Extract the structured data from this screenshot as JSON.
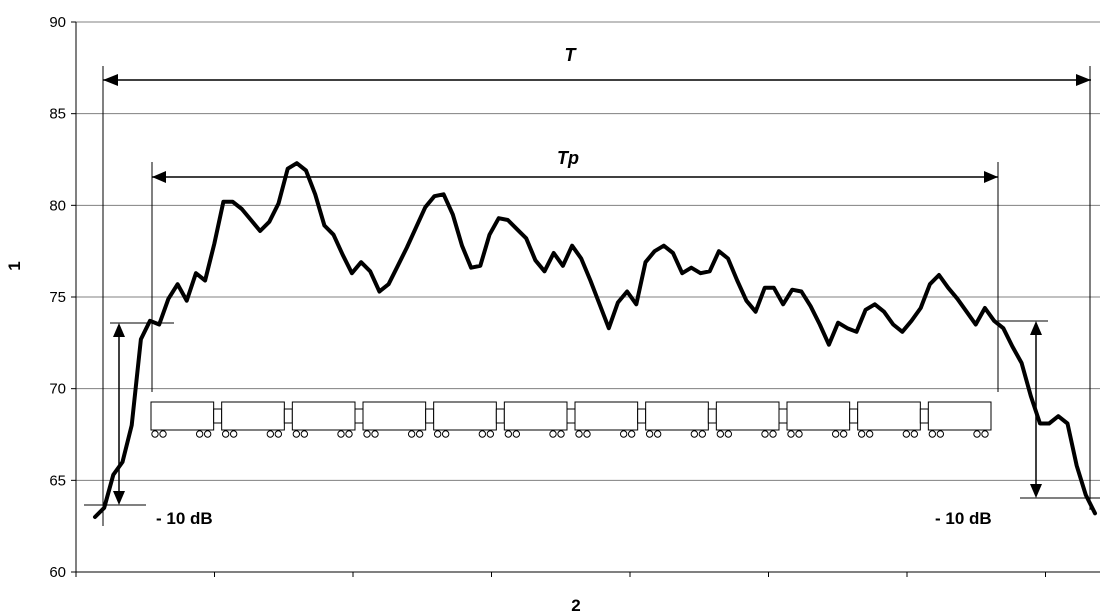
{
  "chart_data": {
    "type": "line",
    "title": "",
    "xlabel": "2",
    "ylabel": "1",
    "ylim": [
      60,
      90
    ],
    "yticks": [
      "60",
      "65",
      "70",
      "75",
      "80",
      "85",
      "90"
    ],
    "grid": "horizontal",
    "legend": "none",
    "series": [
      {
        "color": "#000000",
        "values": [
          63.0,
          63.5,
          65.3,
          66.0,
          68.0,
          72.7,
          73.7,
          73.5,
          74.9,
          75.7,
          74.8,
          76.3,
          75.9,
          77.9,
          80.2,
          80.2,
          79.8,
          79.2,
          78.6,
          79.1,
          80.1,
          82.0,
          82.3,
          81.9,
          80.6,
          78.9,
          78.4,
          77.3,
          76.3,
          76.9,
          76.4,
          75.3,
          75.7,
          76.7,
          77.7,
          78.8,
          79.9,
          80.5,
          80.6,
          79.5,
          77.8,
          76.6,
          76.7,
          78.4,
          79.3,
          79.2,
          78.7,
          78.2,
          77.0,
          76.4,
          77.4,
          76.7,
          77.8,
          77.1,
          75.9,
          74.6,
          73.3,
          74.7,
          75.3,
          74.6,
          76.9,
          77.5,
          77.8,
          77.4,
          76.3,
          76.6,
          76.3,
          76.4,
          77.5,
          77.1,
          75.9,
          74.8,
          74.2,
          75.5,
          75.5,
          74.6,
          75.4,
          75.3,
          74.5,
          73.5,
          72.4,
          73.6,
          73.3,
          73.1,
          74.3,
          74.6,
          74.2,
          73.5,
          73.1,
          73.7,
          74.4,
          75.7,
          76.2,
          75.5,
          74.9,
          74.2,
          73.5,
          74.4,
          73.7,
          73.3,
          72.3,
          71.4,
          69.6,
          68.1,
          68.1,
          68.5,
          68.1,
          65.8,
          64.2,
          63.2
        ]
      }
    ],
    "annotations": {
      "t_label": "T",
      "tp_label": "Tp",
      "db_left": "- 10 dB",
      "db_right": "- 10 dB"
    },
    "wagon_count": 12
  }
}
